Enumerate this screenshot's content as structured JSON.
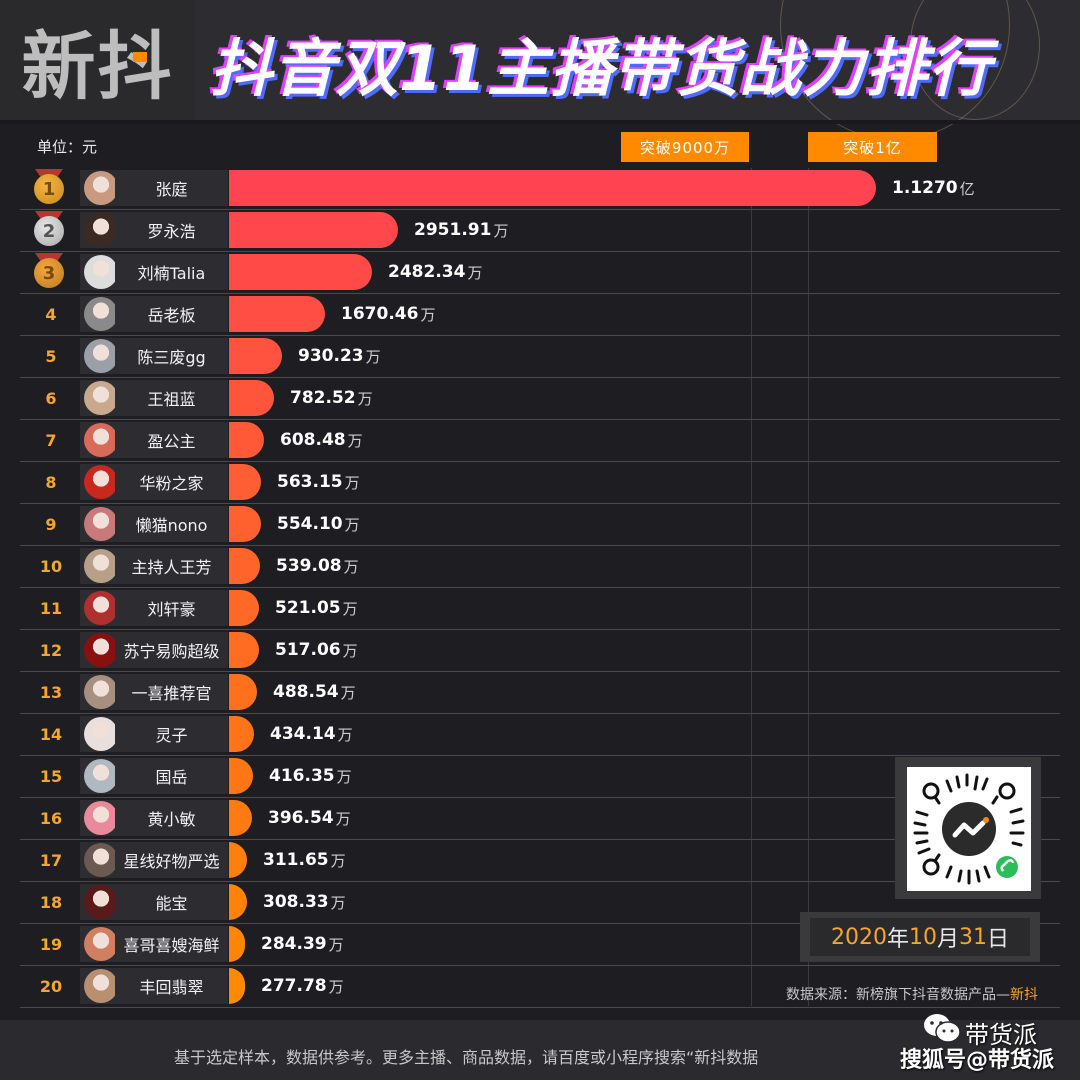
{
  "header": {
    "logo": "新抖",
    "title": "抖音双11主播带货战力排行"
  },
  "unit_label": "单位：元",
  "milestones": [
    {
      "label": "突破9000万",
      "value_wan": 9000
    },
    {
      "label": "突破1亿",
      "value_wan": 10000
    }
  ],
  "colors": {
    "bar_top": "#ff4350",
    "bar_bottom": "#ff8a00",
    "accent": "#ff8a00",
    "rank_text": "#f5a530"
  },
  "rows": [
    {
      "rank": "1",
      "name": "张庭",
      "value": "1.1270",
      "unit": "亿"
    },
    {
      "rank": "2",
      "name": "罗永浩",
      "value": "2951.91",
      "unit": "万"
    },
    {
      "rank": "3",
      "name": "刘楠Talia",
      "value": "2482.34",
      "unit": "万"
    },
    {
      "rank": "4",
      "name": "岳老板",
      "value": "1670.46",
      "unit": "万"
    },
    {
      "rank": "5",
      "name": "陈三废gg",
      "value": "930.23",
      "unit": "万"
    },
    {
      "rank": "6",
      "name": "王祖蓝",
      "value": "782.52",
      "unit": "万"
    },
    {
      "rank": "7",
      "name": "盈公主",
      "value": "608.48",
      "unit": "万"
    },
    {
      "rank": "8",
      "name": "华粉之家",
      "value": "563.15",
      "unit": "万"
    },
    {
      "rank": "9",
      "name": "懒猫nono",
      "value": "554.10",
      "unit": "万"
    },
    {
      "rank": "10",
      "name": "主持人王芳",
      "value": "539.08",
      "unit": "万"
    },
    {
      "rank": "11",
      "name": "刘轩豪",
      "value": "521.05",
      "unit": "万"
    },
    {
      "rank": "12",
      "name": "苏宁易购超级",
      "value": "517.06",
      "unit": "万"
    },
    {
      "rank": "13",
      "name": "一喜推荐官",
      "value": "488.54",
      "unit": "万"
    },
    {
      "rank": "14",
      "name": "灵子",
      "value": "434.14",
      "unit": "万"
    },
    {
      "rank": "15",
      "name": "国岳",
      "value": "416.35",
      "unit": "万"
    },
    {
      "rank": "16",
      "name": "黄小敏",
      "value": "396.54",
      "unit": "万"
    },
    {
      "rank": "17",
      "name": "星线好物严选",
      "value": "311.65",
      "unit": "万"
    },
    {
      "rank": "18",
      "name": "能宝",
      "value": "308.33",
      "unit": "万"
    },
    {
      "rank": "19",
      "name": "喜哥喜嫂海鲜",
      "value": "284.39",
      "unit": "万"
    },
    {
      "rank": "20",
      "name": "丰回翡翠",
      "value": "277.78",
      "unit": "万"
    }
  ],
  "date": {
    "year": "2020",
    "y_suffix": "年",
    "month": "10",
    "m_suffix": "月",
    "day": "31",
    "d_suffix": "日"
  },
  "source": {
    "prefix": "数据来源：新榜旗下抖音数据产品—",
    "brand": "新抖"
  },
  "footer": {
    "text": "基于选定样本，数据供参考。更多主播、商品数据，请百度或小程序搜索“新抖数据"
  },
  "watermark": {
    "line1": "带货派",
    "line2": "搜狐号@带货派"
  },
  "chart_data": {
    "type": "bar",
    "orientation": "horizontal",
    "title": "抖音双11主播带货战力排行",
    "xlabel": "",
    "ylabel": "",
    "unit": "元 (values in 万)",
    "categories": [
      "张庭",
      "罗永浩",
      "刘楠Talia",
      "岳老板",
      "陈三废gg",
      "王祖蓝",
      "盈公主",
      "华粉之家",
      "懒猫nono",
      "主持人王芳",
      "刘轩豪",
      "苏宁易购超级",
      "一喜推荐官",
      "灵子",
      "国岳",
      "黄小敏",
      "星线好物严选",
      "能宝",
      "喜哥喜嫂海鲜",
      "丰回翡翠"
    ],
    "values": [
      11270,
      2951.91,
      2482.34,
      1670.46,
      930.23,
      782.52,
      608.48,
      563.15,
      554.1,
      539.08,
      521.05,
      517.06,
      488.54,
      434.14,
      416.35,
      396.54,
      311.65,
      308.33,
      284.39,
      277.78
    ],
    "reference_lines": [
      {
        "label": "突破9000万",
        "value": 9000
      },
      {
        "label": "突破1亿",
        "value": 10000
      }
    ],
    "xlim": [
      0,
      11270
    ],
    "grid": false,
    "legend": "none",
    "date": "2020年10月31日"
  }
}
